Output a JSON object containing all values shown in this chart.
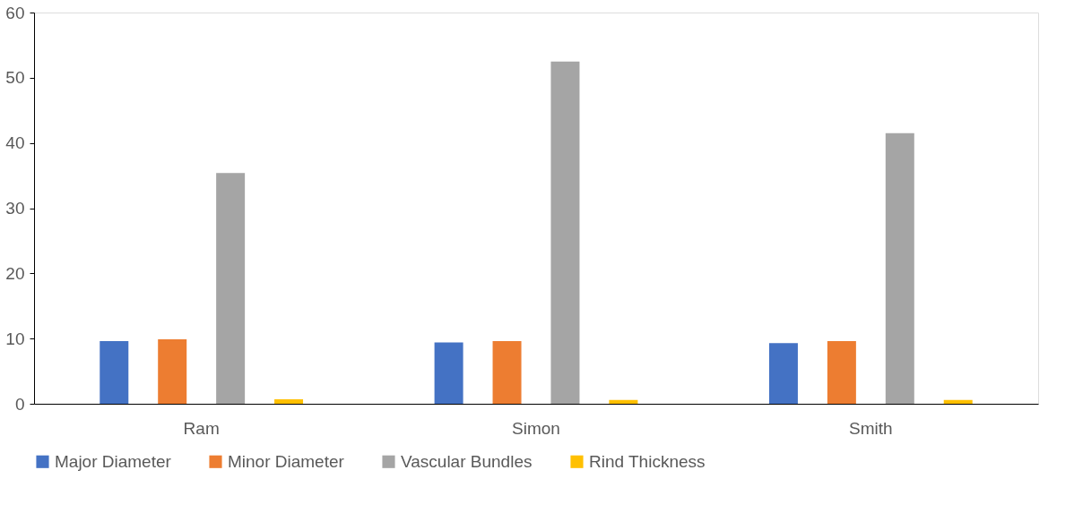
{
  "chart_data": {
    "type": "bar",
    "categories": [
      "Ram",
      "Simon",
      "Smith"
    ],
    "series": [
      {
        "name": "Major Diameter",
        "color": "#4472c4",
        "values": [
          9.6,
          9.4,
          9.3
        ]
      },
      {
        "name": "Minor Diameter",
        "color": "#ed7d31",
        "values": [
          9.9,
          9.6,
          9.6
        ]
      },
      {
        "name": "Vascular Bundles",
        "color": "#a5a5a5",
        "values": [
          35.4,
          52.5,
          41.5
        ]
      },
      {
        "name": "Rind Thickness",
        "color": "#ffc000",
        "values": [
          0.7,
          0.6,
          0.6
        ]
      }
    ],
    "ylim": [
      0,
      60
    ],
    "yticks": [
      0,
      10,
      20,
      30,
      40,
      50,
      60
    ],
    "grid": false,
    "legend": "bottom"
  }
}
